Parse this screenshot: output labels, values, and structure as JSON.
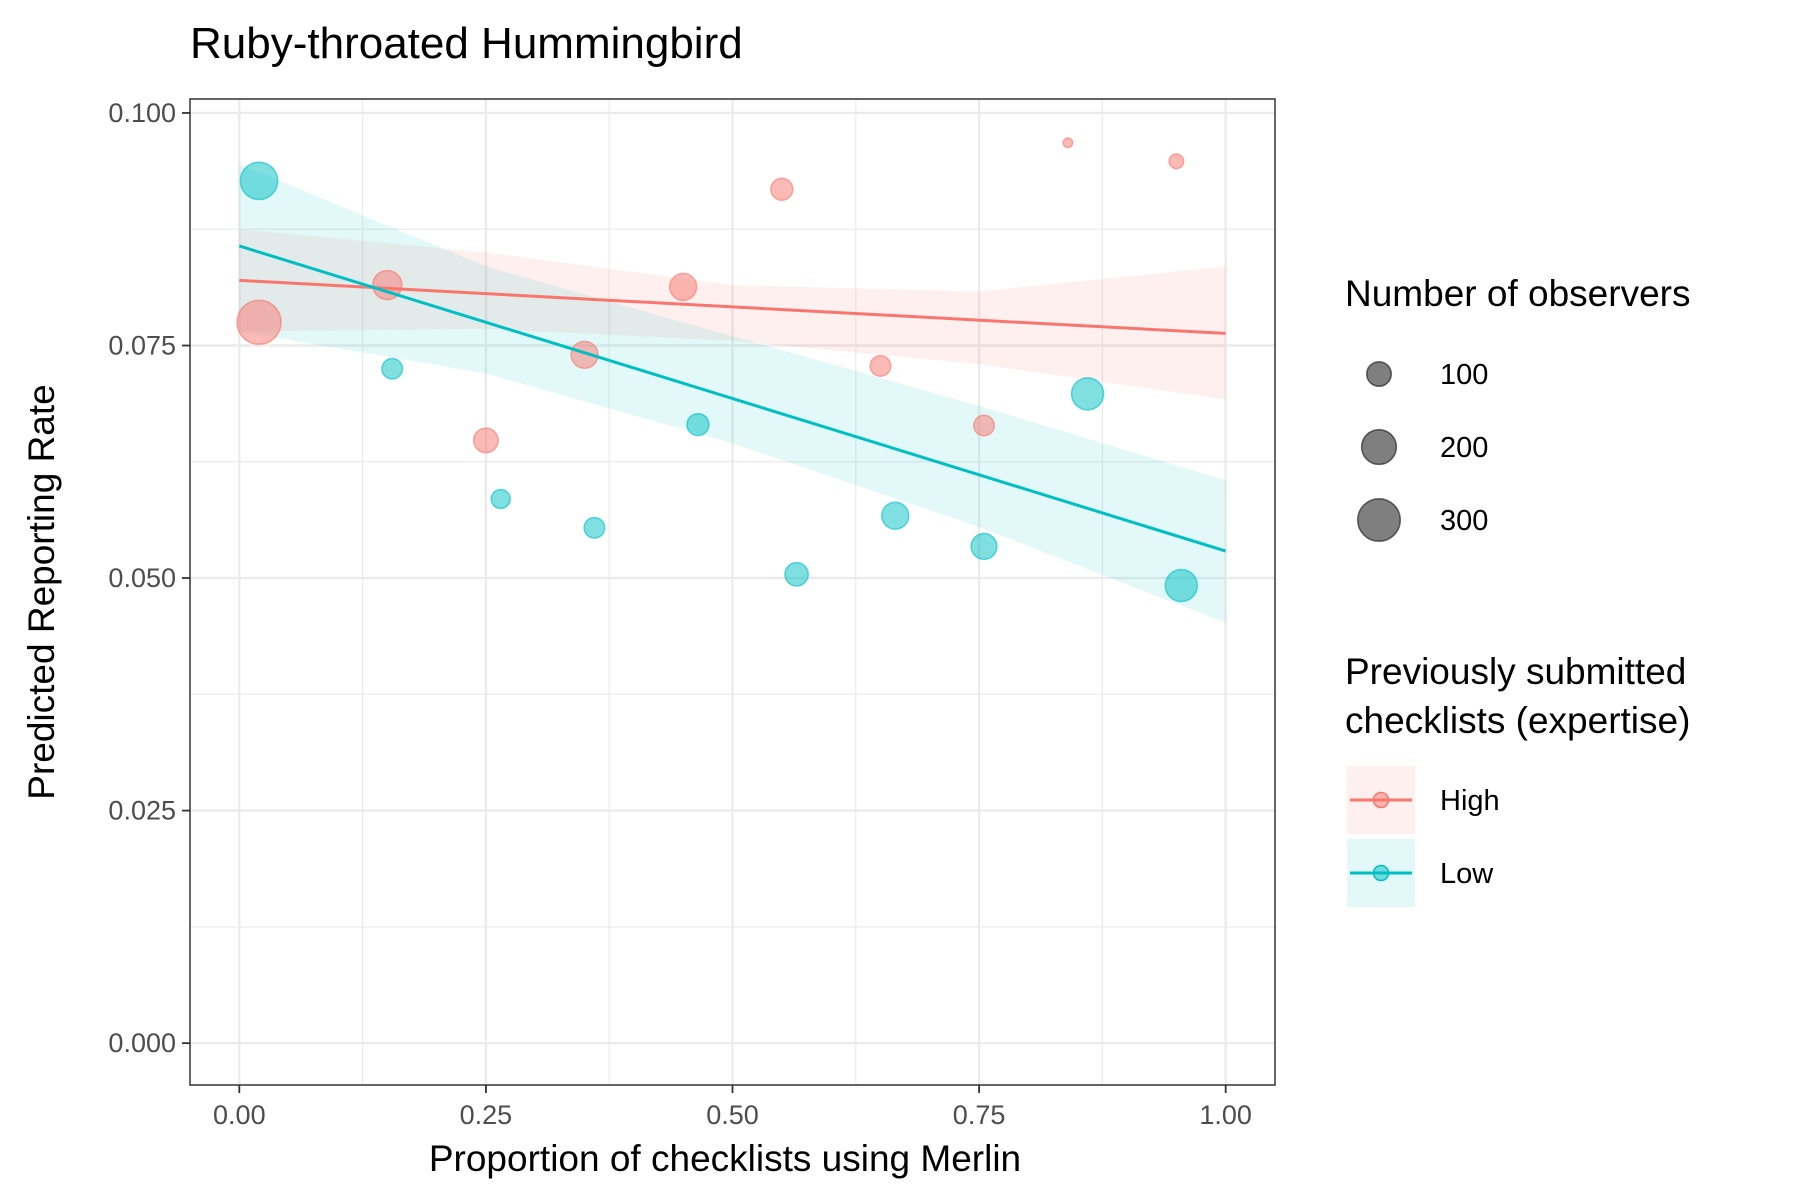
{
  "chart_data": {
    "type": "scatter",
    "title": "Ruby-throated Hummingbird",
    "xlabel": "Proportion of checklists using Merlin",
    "ylabel": "Predicted Reporting Rate",
    "xlim": [
      -0.05,
      1.05
    ],
    "ylim": [
      -0.0045,
      0.1015
    ],
    "x_ticks": [
      0.0,
      0.25,
      0.5,
      0.75,
      1.0
    ],
    "x_tick_labels": [
      "0.00",
      "0.25",
      "0.50",
      "0.75",
      "1.00"
    ],
    "y_ticks": [
      0.0,
      0.025,
      0.05,
      0.075,
      0.1
    ],
    "y_tick_labels": [
      "0.000",
      "0.025",
      "0.050",
      "0.075",
      "0.100"
    ],
    "grid": true,
    "legend_position": "right",
    "size_legend": {
      "title": "Number of observers",
      "entries": [
        {
          "label": "100",
          "value": 100
        },
        {
          "label": "200",
          "value": 200
        },
        {
          "label": "300",
          "value": 300
        }
      ]
    },
    "color_legend": {
      "title_lines": [
        "Previously submitted",
        "checklists (expertise)"
      ]
    },
    "series": [
      {
        "name": "High",
        "color": "#F8766D",
        "points": [
          {
            "x": 0.02,
            "y": 0.0775,
            "size": 320
          },
          {
            "x": 0.15,
            "y": 0.0815,
            "size": 140
          },
          {
            "x": 0.25,
            "y": 0.0648,
            "size": 100
          },
          {
            "x": 0.35,
            "y": 0.074,
            "size": 120
          },
          {
            "x": 0.45,
            "y": 0.0813,
            "size": 120
          },
          {
            "x": 0.55,
            "y": 0.0918,
            "size": 80
          },
          {
            "x": 0.65,
            "y": 0.0728,
            "size": 70
          },
          {
            "x": 0.755,
            "y": 0.0664,
            "size": 70
          },
          {
            "x": 0.84,
            "y": 0.0968,
            "size": 15
          },
          {
            "x": 0.95,
            "y": 0.0948,
            "size": 35
          }
        ],
        "fit": {
          "x": [
            0.0,
            1.0
          ],
          "y": [
            0.082,
            0.0763
          ]
        },
        "ci": {
          "x": [
            0.0,
            0.25,
            0.5,
            0.75,
            1.0
          ],
          "lower": [
            0.0765,
            0.0768,
            0.0755,
            0.073,
            0.0692
          ],
          "upper": [
            0.0875,
            0.085,
            0.0815,
            0.0808,
            0.0835
          ]
        }
      },
      {
        "name": "Low",
        "color": "#00BFC4",
        "points": [
          {
            "x": 0.02,
            "y": 0.0927,
            "size": 230
          },
          {
            "x": 0.155,
            "y": 0.0725,
            "size": 70
          },
          {
            "x": 0.265,
            "y": 0.0585,
            "size": 60
          },
          {
            "x": 0.36,
            "y": 0.0554,
            "size": 70
          },
          {
            "x": 0.465,
            "y": 0.0665,
            "size": 80
          },
          {
            "x": 0.565,
            "y": 0.0504,
            "size": 90
          },
          {
            "x": 0.665,
            "y": 0.0567,
            "size": 120
          },
          {
            "x": 0.755,
            "y": 0.0534,
            "size": 110
          },
          {
            "x": 0.86,
            "y": 0.0698,
            "size": 170
          },
          {
            "x": 0.955,
            "y": 0.0492,
            "size": 170
          }
        ],
        "fit": {
          "x": [
            0.0,
            1.0
          ],
          "y": [
            0.0857,
            0.0529
          ]
        },
        "ci": {
          "x": [
            0.0,
            0.25,
            0.5,
            0.75,
            1.0
          ],
          "lower": [
            0.0765,
            0.072,
            0.0645,
            0.0555,
            0.0452
          ],
          "upper": [
            0.0945,
            0.0835,
            0.076,
            0.0685,
            0.0605
          ]
        }
      }
    ]
  }
}
